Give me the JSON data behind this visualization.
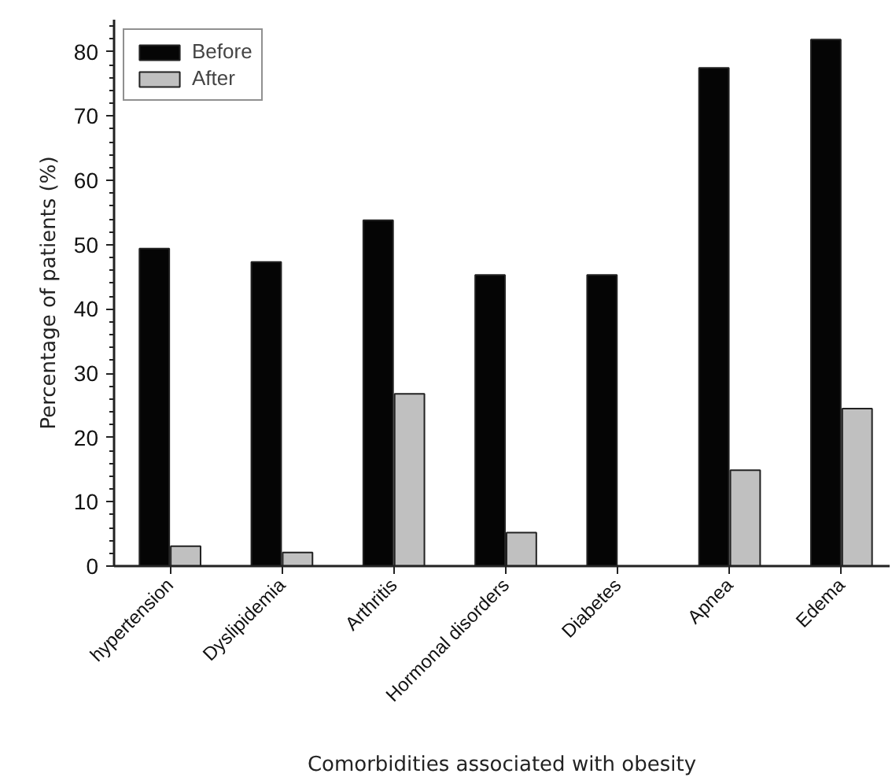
{
  "chart_data": {
    "type": "bar",
    "categories": [
      "hypertension",
      "Dyslipidemia",
      "Arthritis",
      "Hormonal disorders",
      "Diabetes",
      "Apnea",
      "Edema"
    ],
    "series": [
      {
        "name": "Before",
        "color": "#050505",
        "values": [
          49.4,
          47.3,
          53.8,
          45.3,
          45.3,
          77.5,
          81.9
        ]
      },
      {
        "name": "After",
        "color": "#c0c0c0",
        "values": [
          3.1,
          2.1,
          26.8,
          5.2,
          null,
          14.9,
          24.5
        ]
      }
    ],
    "xlabel": "Comorbidities associated with obesity",
    "ylabel": "Percentage of patients (%)",
    "ylim": [
      0,
      85
    ],
    "yticks": [
      0,
      10,
      20,
      30,
      40,
      50,
      60,
      70,
      80
    ],
    "grid": false,
    "legend": "top left"
  }
}
